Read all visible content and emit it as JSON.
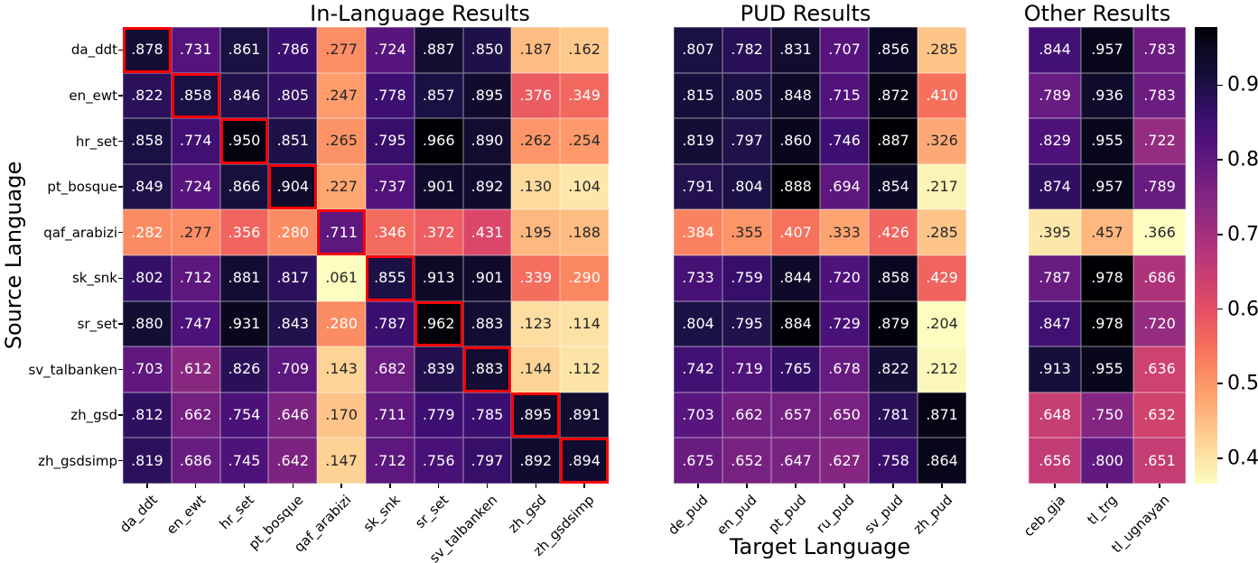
{
  "figure": {
    "ylabel": "Source Language",
    "xlabel": "Target Language"
  },
  "chart_data": [
    {
      "type": "heatmap",
      "title": "In-Language Results",
      "colormap": "magma_r",
      "highlight_diagonal": true,
      "highlight_color": "#ff0000",
      "rows": [
        "da_ddt",
        "en_ewt",
        "hr_set",
        "pt_bosque",
        "qaf_arabizi",
        "sk_snk",
        "sr_set",
        "sv_talbanken",
        "zh_gsd",
        "zh_gsdsimp"
      ],
      "columns": [
        "da_ddt",
        "en_ewt",
        "hr_set",
        "pt_bosque",
        "qaf_arabizi",
        "sk_snk",
        "sr_set",
        "sv_talbanken",
        "zh_gsd",
        "zh_gsdsimp"
      ],
      "values": [
        [
          0.878,
          0.731,
          0.861,
          0.786,
          0.277,
          0.724,
          0.887,
          0.85,
          0.187,
          0.162
        ],
        [
          0.822,
          0.858,
          0.846,
          0.805,
          0.247,
          0.778,
          0.857,
          0.895,
          0.376,
          0.349
        ],
        [
          0.858,
          0.774,
          0.95,
          0.851,
          0.265,
          0.795,
          0.966,
          0.89,
          0.262,
          0.254
        ],
        [
          0.849,
          0.724,
          0.866,
          0.904,
          0.227,
          0.737,
          0.901,
          0.892,
          0.13,
          0.104
        ],
        [
          0.282,
          0.277,
          0.356,
          0.28,
          0.711,
          0.346,
          0.372,
          0.431,
          0.195,
          0.188
        ],
        [
          0.802,
          0.712,
          0.881,
          0.817,
          0.061,
          0.855,
          0.913,
          0.901,
          0.339,
          0.29
        ],
        [
          0.88,
          0.747,
          0.931,
          0.843,
          0.28,
          0.787,
          0.962,
          0.883,
          0.123,
          0.114
        ],
        [
          0.703,
          0.612,
          0.826,
          0.709,
          0.143,
          0.682,
          0.839,
          0.883,
          0.144,
          0.112
        ],
        [
          0.812,
          0.662,
          0.754,
          0.646,
          0.17,
          0.711,
          0.779,
          0.785,
          0.895,
          0.891
        ],
        [
          0.819,
          0.686,
          0.745,
          0.642,
          0.147,
          0.712,
          0.756,
          0.797,
          0.892,
          0.894
        ]
      ]
    },
    {
      "type": "heatmap",
      "title": "PUD Results",
      "colormap": "magma_r",
      "highlight_diagonal": false,
      "columns": [
        "de_pud",
        "en_pud",
        "pt_pud",
        "ru_pud",
        "sv_pud",
        "zh_pud"
      ],
      "values": [
        [
          0.807,
          0.782,
          0.831,
          0.707,
          0.856,
          0.285
        ],
        [
          0.815,
          0.805,
          0.848,
          0.715,
          0.872,
          0.41
        ],
        [
          0.819,
          0.797,
          0.86,
          0.746,
          0.887,
          0.326
        ],
        [
          0.791,
          0.804,
          0.888,
          0.694,
          0.854,
          0.217
        ],
        [
          0.384,
          0.355,
          0.407,
          0.333,
          0.426,
          0.285
        ],
        [
          0.733,
          0.759,
          0.844,
          0.72,
          0.858,
          0.429
        ],
        [
          0.804,
          0.795,
          0.884,
          0.729,
          0.879,
          0.204
        ],
        [
          0.742,
          0.719,
          0.765,
          0.678,
          0.822,
          0.212
        ],
        [
          0.703,
          0.662,
          0.657,
          0.65,
          0.781,
          0.871
        ],
        [
          0.675,
          0.652,
          0.647,
          0.627,
          0.758,
          0.864
        ]
      ]
    },
    {
      "type": "heatmap",
      "title": "Other Results",
      "colormap": "magma_r",
      "highlight_diagonal": false,
      "columns": [
        "ceb_gja",
        "tl_trg",
        "tl_ugnayan"
      ],
      "values": [
        [
          0.844,
          0.957,
          0.783
        ],
        [
          0.789,
          0.936,
          0.783
        ],
        [
          0.829,
          0.955,
          0.722
        ],
        [
          0.874,
          0.957,
          0.789
        ],
        [
          0.395,
          0.457,
          0.366
        ],
        [
          0.787,
          0.978,
          0.686
        ],
        [
          0.847,
          0.978,
          0.72
        ],
        [
          0.913,
          0.955,
          0.636
        ],
        [
          0.648,
          0.75,
          0.632
        ],
        [
          0.656,
          0.8,
          0.651
        ]
      ]
    }
  ],
  "colorbar": {
    "ticks": [
      "0.9",
      "0.8",
      "0.7",
      "0.6",
      "0.5",
      "0.4"
    ],
    "scale_heatmap": "Other Results"
  }
}
